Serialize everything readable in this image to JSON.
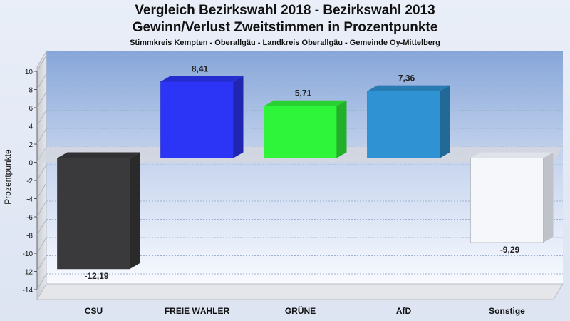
{
  "chart_data": {
    "type": "bar",
    "title": "Vergleich Bezirkswahl 2018 - Bezirkswahl 2013",
    "subtitle": "Gewinn/Verlust Zweitstimmen in Prozentpunkte",
    "caption": "Stimmkreis Kempten - Oberallgäu - Landkreis Oberallgäu - Gemeinde Oy-Mittelberg",
    "ylabel": "Prozentpunkte",
    "xlabel": "",
    "ylim": [
      -14,
      10
    ],
    "yticks": [
      "10",
      "8",
      "6",
      "4",
      "2",
      "0",
      "-2",
      "-4",
      "-6",
      "-8",
      "-10",
      "-12",
      "-14"
    ],
    "grid": true,
    "categories": [
      "CSU",
      "FREIE WÄHLER",
      "GRÜNE",
      "AfD",
      "Sonstige"
    ],
    "values": [
      -12.19,
      8.41,
      5.71,
      7.36,
      -9.29
    ],
    "value_labels": [
      "-12,19",
      "8,41",
      "5,71",
      "7,36",
      "-9,29"
    ],
    "colors": [
      "#3a3a3c",
      "#2c35f5",
      "#2ff53a",
      "#2f92d2",
      "#f5f7fb"
    ]
  }
}
